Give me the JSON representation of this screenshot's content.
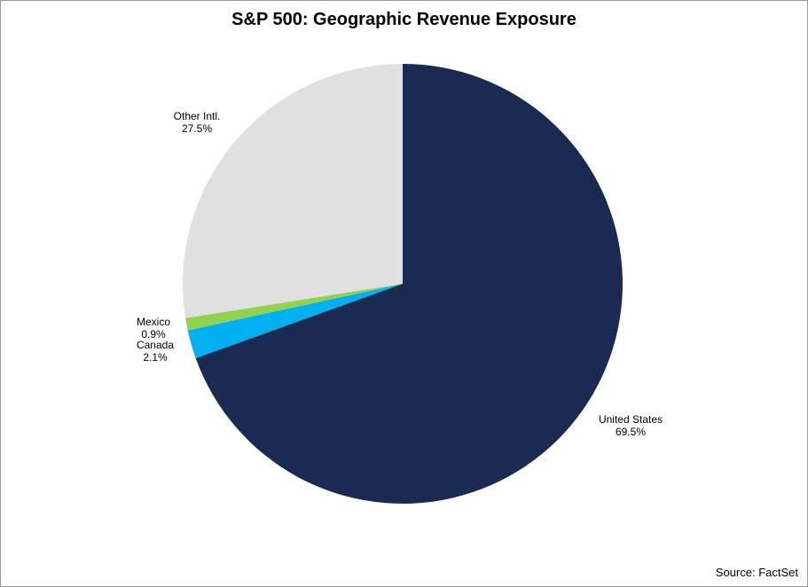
{
  "chart_data": {
    "type": "pie",
    "title": "S&P 500: Geographic Revenue Exposure",
    "start_angle_deg": 0,
    "direction": "clockwise",
    "slices": [
      {
        "label": "United States",
        "value": 69.5,
        "value_label": "69.5%",
        "color": "#1a2a52",
        "label_side": "outside"
      },
      {
        "label": "Canada",
        "value": 2.1,
        "value_label": "2.1%",
        "color": "#00b0f0",
        "label_side": "outside"
      },
      {
        "label": "Mexico",
        "value": 0.9,
        "value_label": "0.9%",
        "color": "#92d050",
        "label_side": "outside"
      },
      {
        "label": "Other Intl.",
        "value": 27.5,
        "value_label": "27.5%",
        "color": "#e0e0e0",
        "label_side": "outside"
      }
    ]
  },
  "footer": {
    "source": "Source: FactSet"
  }
}
